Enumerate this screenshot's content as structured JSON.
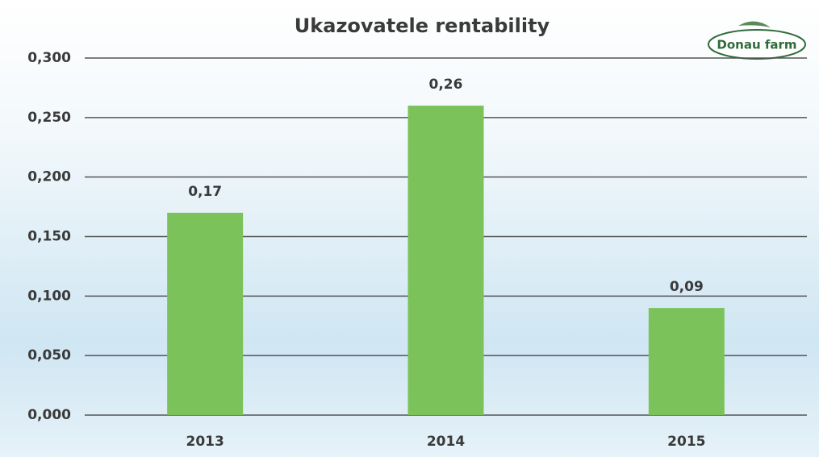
{
  "chart_data": {
    "type": "bar",
    "title": "Ukazovatele rentability",
    "logo": "Donau farm",
    "categories": [
      "2013",
      "2014",
      "2015"
    ],
    "values": [
      0.17,
      0.26,
      0.09
    ],
    "value_labels": [
      "0,17",
      "0,26",
      "0,09"
    ],
    "color": "#7cc25a",
    "ylim": [
      0,
      0.3
    ],
    "yticks": [
      {
        "value": 0,
        "label": "0,000"
      },
      {
        "value": 0.05,
        "label": "0,050"
      },
      {
        "value": 0.1,
        "label": "0,100"
      },
      {
        "value": 0.15,
        "label": "0,150"
      },
      {
        "value": 0.2,
        "label": "0,200"
      },
      {
        "value": 0.25,
        "label": "0,250"
      },
      {
        "value": 0.3,
        "label": "0,300"
      }
    ],
    "grid": true
  }
}
